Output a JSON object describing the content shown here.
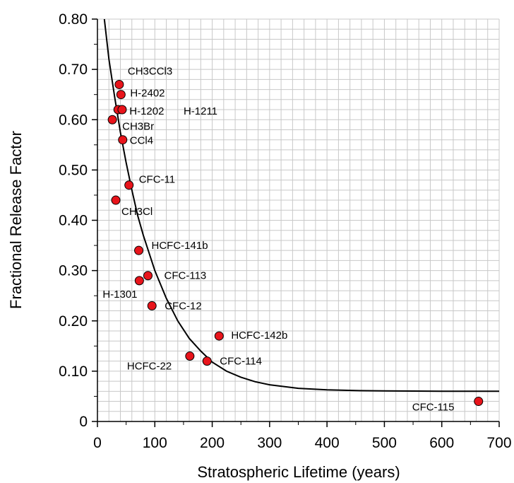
{
  "chart_data": {
    "type": "scatter",
    "xlabel": "Stratospheric Lifetime (years)",
    "ylabel": "Fractional Release Factor",
    "xlim": [
      0,
      700
    ],
    "ylim": [
      0,
      0.8
    ],
    "x_ticks": [
      "0",
      "100",
      "200",
      "300",
      "400",
      "500",
      "600",
      "700"
    ],
    "y_ticks": [
      "0",
      "0.10",
      "0.20",
      "0.30",
      "0.40",
      "0.50",
      "0.60",
      "0.70",
      "0.80"
    ],
    "grid": true,
    "marker_color": "#e8141b",
    "curve_color": "#000000",
    "points": [
      {
        "label": "CH3CCl3",
        "x": 38,
        "y": 0.67
      },
      {
        "label": "H-2402",
        "x": 41,
        "y": 0.65
      },
      {
        "label": "H-1202",
        "x": 36,
        "y": 0.62
      },
      {
        "label": "H-1211",
        "x": 43,
        "y": 0.62
      },
      {
        "label": "CH3Br",
        "x": 26,
        "y": 0.6
      },
      {
        "label": "CCl4",
        "x": 44,
        "y": 0.56
      },
      {
        "label": "CFC-11",
        "x": 55,
        "y": 0.47
      },
      {
        "label": "CH3Cl",
        "x": 32,
        "y": 0.44
      },
      {
        "label": "HCFC-141b",
        "x": 72,
        "y": 0.34
      },
      {
        "label": "CFC-113",
        "x": 88,
        "y": 0.29
      },
      {
        "label": "H-1301",
        "x": 73,
        "y": 0.28
      },
      {
        "label": "CFC-12",
        "x": 95,
        "y": 0.23
      },
      {
        "label": "HCFC-142b",
        "x": 212,
        "y": 0.17
      },
      {
        "label": "HCFC-22",
        "x": 161,
        "y": 0.13
      },
      {
        "label": "CFC-114",
        "x": 191,
        "y": 0.12
      },
      {
        "label": "CFC-115",
        "x": 664,
        "y": 0.04
      }
    ],
    "curve": [
      {
        "x": 12,
        "y": 0.8
      },
      {
        "x": 20,
        "y": 0.72
      },
      {
        "x": 30,
        "y": 0.645
      },
      {
        "x": 40,
        "y": 0.575
      },
      {
        "x": 50,
        "y": 0.515
      },
      {
        "x": 60,
        "y": 0.46
      },
      {
        "x": 70,
        "y": 0.41
      },
      {
        "x": 80,
        "y": 0.37
      },
      {
        "x": 100,
        "y": 0.3
      },
      {
        "x": 120,
        "y": 0.245
      },
      {
        "x": 140,
        "y": 0.2
      },
      {
        "x": 160,
        "y": 0.165
      },
      {
        "x": 180,
        "y": 0.14
      },
      {
        "x": 200,
        "y": 0.118
      },
      {
        "x": 225,
        "y": 0.1
      },
      {
        "x": 250,
        "y": 0.088
      },
      {
        "x": 275,
        "y": 0.079
      },
      {
        "x": 300,
        "y": 0.073
      },
      {
        "x": 350,
        "y": 0.066
      },
      {
        "x": 400,
        "y": 0.063
      },
      {
        "x": 450,
        "y": 0.0615
      },
      {
        "x": 500,
        "y": 0.0607
      },
      {
        "x": 600,
        "y": 0.06
      },
      {
        "x": 700,
        "y": 0.06
      }
    ]
  }
}
